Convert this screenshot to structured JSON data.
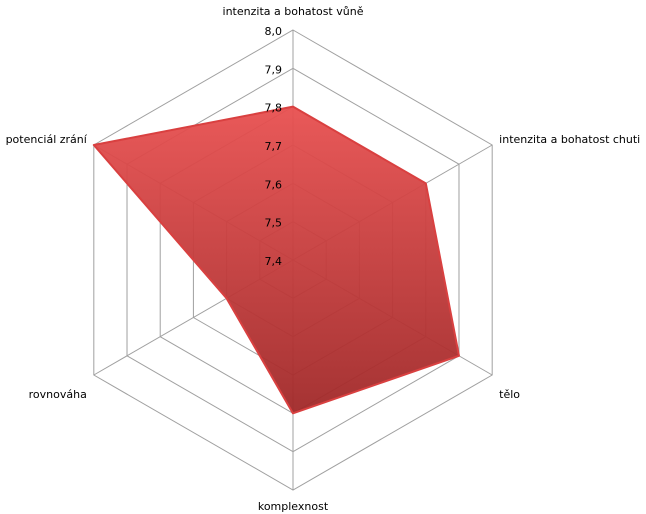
{
  "chart_data": {
    "type": "radar",
    "categories": [
      "intenzita a bohatost vůně",
      "intenzita a bohatost chuti",
      "tělo",
      "komplexnost",
      "rovnováha",
      "potenciál zrání"
    ],
    "values": [
      7.8,
      7.8,
      7.9,
      7.8,
      7.6,
      8.0
    ],
    "color": "#d94040",
    "ylim": [
      7.4,
      8.0
    ],
    "yticks": [
      {
        "value": 7.4,
        "label": "7,4"
      },
      {
        "value": 7.5,
        "label": "7,5"
      },
      {
        "value": 7.6,
        "label": "7,6"
      },
      {
        "value": 7.7,
        "label": "7,7"
      },
      {
        "value": 7.8,
        "label": "7,8"
      },
      {
        "value": 7.9,
        "label": "7,9"
      },
      {
        "value": 8.0,
        "label": "8,0"
      }
    ],
    "grid": true
  }
}
